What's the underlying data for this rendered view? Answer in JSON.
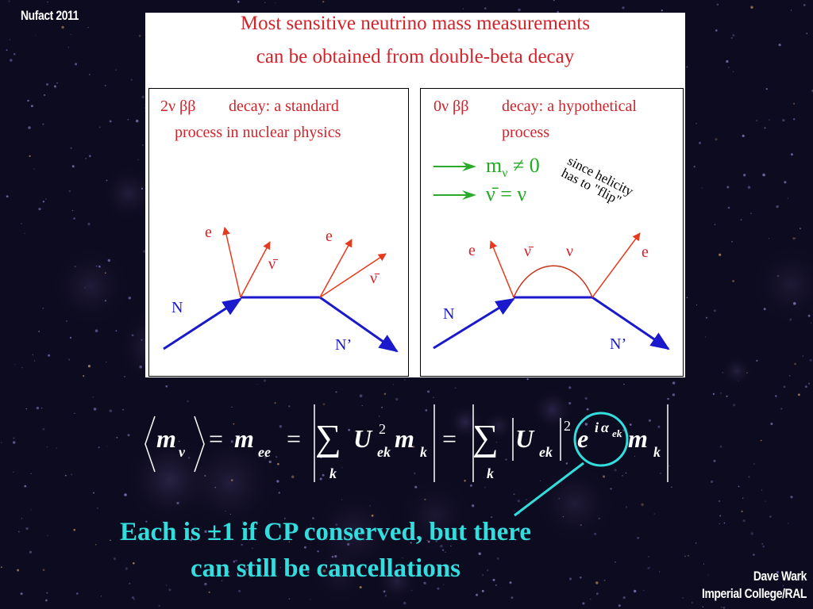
{
  "header": {
    "conference": "Nufact 2011"
  },
  "footer": {
    "author": "Dave Wark",
    "institution": "Imperial College/RAL"
  },
  "panel": {
    "title_line1": "Most sensitive neutrino mass measurements",
    "title_line2": "can be obtained from double-beta decay",
    "left": {
      "heading_symbol": "2ν ββ",
      "heading_text": "decay: a standard",
      "heading_text2": "process in nuclear physics",
      "labels": {
        "e1": "e",
        "e2": "e",
        "nubar1": "ν̄",
        "nubar2": "ν̄",
        "N": "N",
        "Nprime": "N’"
      }
    },
    "right": {
      "heading_symbol": "0ν ββ",
      "heading_text": "decay: a hypothetical",
      "heading_text2": "process",
      "implication1": "m",
      "implication1_sub": "ν",
      "implication1_rest": "≠ 0",
      "implication2": "ν̄ = ν",
      "helicity_line1": "since helicity",
      "helicity_line2": "has to \"flip\"",
      "labels": {
        "e1": "e",
        "e2": "e",
        "nubar": "ν̄",
        "nu": "ν",
        "N": "N",
        "Nprime": "N’"
      }
    }
  },
  "equation": {
    "m": "m",
    "nu": "ν",
    "eq": "=",
    "ee": "ee",
    "sum": "∑",
    "k": "k",
    "U": "U",
    "ek": "ek",
    "sq": "2",
    "e": "e",
    "i": "i",
    "alpha": "α"
  },
  "note": {
    "line1": "Each is ±1 if CP conserved, but there",
    "line2": "can still be cancellations"
  },
  "colors": {
    "background": "#0d0b1f",
    "accent": "#33dddd",
    "title": "#d2232a",
    "blue": "#1a1acc"
  }
}
